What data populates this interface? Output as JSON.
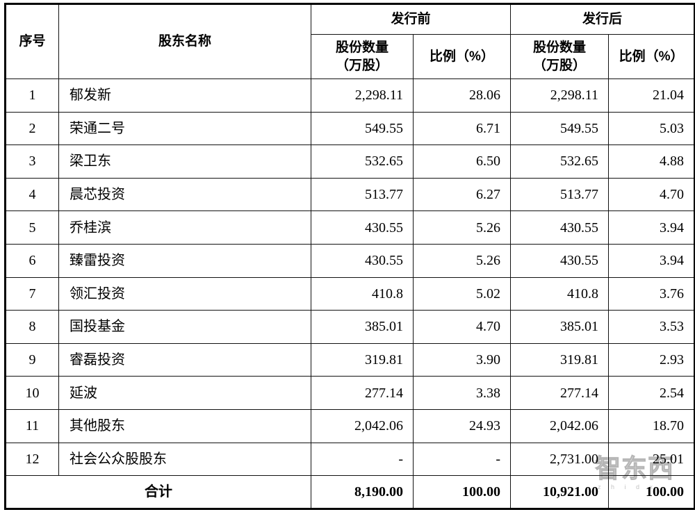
{
  "table": {
    "headers": {
      "serial": "序号",
      "shareholder_name": "股东名称",
      "group_pre_issue": "发行前",
      "group_post_issue": "发行后",
      "shares_line1": "股份数量",
      "shares_line2": "（万股）",
      "ratio": "比例（%）"
    },
    "rows": [
      {
        "no": "1",
        "name": "郁发新",
        "pre_shares": "2,298.11",
        "pre_ratio": "28.06",
        "post_shares": "2,298.11",
        "post_ratio": "21.04"
      },
      {
        "no": "2",
        "name": "荣通二号",
        "pre_shares": "549.55",
        "pre_ratio": "6.71",
        "post_shares": "549.55",
        "post_ratio": "5.03"
      },
      {
        "no": "3",
        "name": "梁卫东",
        "pre_shares": "532.65",
        "pre_ratio": "6.50",
        "post_shares": "532.65",
        "post_ratio": "4.88"
      },
      {
        "no": "4",
        "name": "晨芯投资",
        "pre_shares": "513.77",
        "pre_ratio": "6.27",
        "post_shares": "513.77",
        "post_ratio": "4.70"
      },
      {
        "no": "5",
        "name": "乔桂滨",
        "pre_shares": "430.55",
        "pre_ratio": "5.26",
        "post_shares": "430.55",
        "post_ratio": "3.94"
      },
      {
        "no": "6",
        "name": "臻雷投资",
        "pre_shares": "430.55",
        "pre_ratio": "5.26",
        "post_shares": "430.55",
        "post_ratio": "3.94"
      },
      {
        "no": "7",
        "name": "领汇投资",
        "pre_shares": "410.8",
        "pre_ratio": "5.02",
        "post_shares": "410.8",
        "post_ratio": "3.76"
      },
      {
        "no": "8",
        "name": "国投基金",
        "pre_shares": "385.01",
        "pre_ratio": "4.70",
        "post_shares": "385.01",
        "post_ratio": "3.53"
      },
      {
        "no": "9",
        "name": "睿磊投资",
        "pre_shares": "319.81",
        "pre_ratio": "3.90",
        "post_shares": "319.81",
        "post_ratio": "2.93"
      },
      {
        "no": "10",
        "name": "延波",
        "pre_shares": "277.14",
        "pre_ratio": "3.38",
        "post_shares": "277.14",
        "post_ratio": "2.54"
      },
      {
        "no": "11",
        "name": "其他股东",
        "pre_shares": "2,042.06",
        "pre_ratio": "24.93",
        "post_shares": "2,042.06",
        "post_ratio": "18.70"
      },
      {
        "no": "12",
        "name": "社会公众股股东",
        "pre_shares": "-",
        "pre_ratio": "-",
        "post_shares": "2,731.00",
        "post_ratio": "25.01"
      }
    ],
    "total": {
      "label": "合计",
      "pre_shares": "8,190.00",
      "pre_ratio": "100.00",
      "post_shares": "10,921.00",
      "post_ratio": "100.00"
    }
  },
  "watermark": {
    "text": "智东西",
    "subtext": "z h i d x"
  }
}
